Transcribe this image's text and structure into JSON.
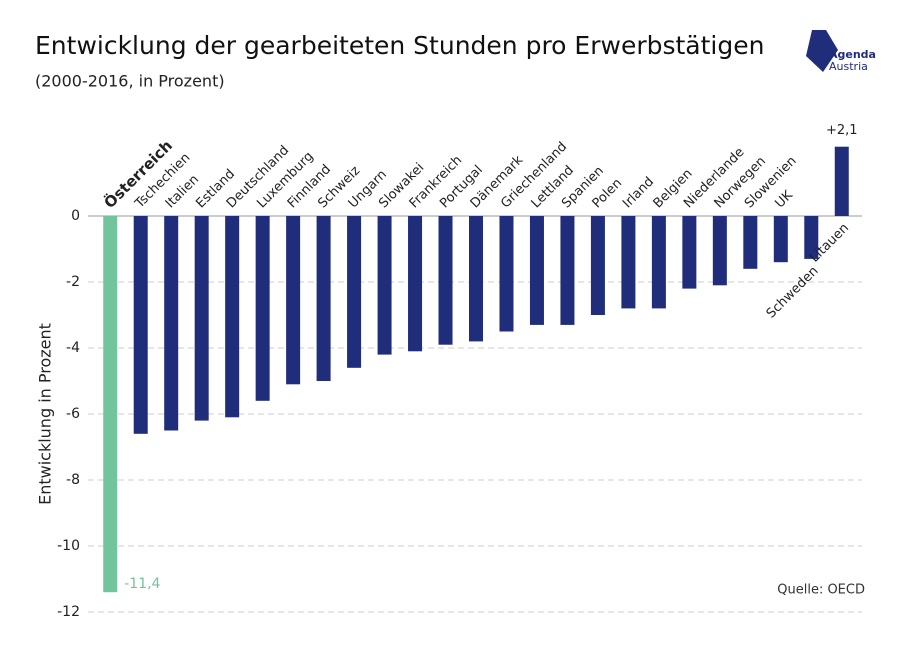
{
  "chart_data": {
    "type": "bar",
    "title": "Entwicklung der gearbeiteten Stunden pro Erwerbstätigen",
    "subtitle": "(2000-2016, in Prozent)",
    "y_label": "Entwicklung in Prozent",
    "source": "Quelle: OECD",
    "logo": [
      "Agenda",
      "Austria"
    ],
    "categories": [
      "Österreich",
      "Tschechien",
      "Italien",
      "Estland",
      "Deutschland",
      "Luxemburg",
      "Finnland",
      "Schweiz",
      "Ungarn",
      "Slowakei",
      "Frankreich",
      "Portugal",
      "Dänemark",
      "Griechenland",
      "Lettland",
      "Spanien",
      "Polen",
      "Irland",
      "Belgien",
      "Niederlande",
      "Norwegen",
      "Slowenien",
      "UK",
      "Schweden",
      "Litauen"
    ],
    "values": [
      -11.4,
      -6.6,
      -6.5,
      -6.2,
      -6.1,
      -5.6,
      -5.1,
      -5.0,
      -4.6,
      -4.2,
      -4.1,
      -3.9,
      -3.8,
      -3.5,
      -3.3,
      -3.3,
      -3.0,
      -2.8,
      -2.8,
      -2.2,
      -2.1,
      -1.6,
      -1.4,
      -1.3,
      2.1
    ],
    "value_labels": [
      "-11,4",
      null,
      null,
      null,
      null,
      null,
      null,
      null,
      null,
      null,
      null,
      null,
      null,
      null,
      null,
      null,
      null,
      null,
      null,
      null,
      null,
      null,
      null,
      null,
      "+2,1"
    ],
    "colors": [
      "#72c49c",
      "#1f2d7b",
      "#1f2d7b",
      "#1f2d7b",
      "#1f2d7b",
      "#1f2d7b",
      "#1f2d7b",
      "#1f2d7b",
      "#1f2d7b",
      "#1f2d7b",
      "#1f2d7b",
      "#1f2d7b",
      "#1f2d7b",
      "#1f2d7b",
      "#1f2d7b",
      "#1f2d7b",
      "#1f2d7b",
      "#1f2d7b",
      "#1f2d7b",
      "#1f2d7b",
      "#1f2d7b",
      "#1f2d7b",
      "#1f2d7b",
      "#1f2d7b",
      "#1f2d7b"
    ],
    "ylim": [
      -12,
      3
    ],
    "yticks": [
      0,
      -2,
      -4,
      -6,
      -8,
      -10,
      -12
    ],
    "grid": true
  }
}
